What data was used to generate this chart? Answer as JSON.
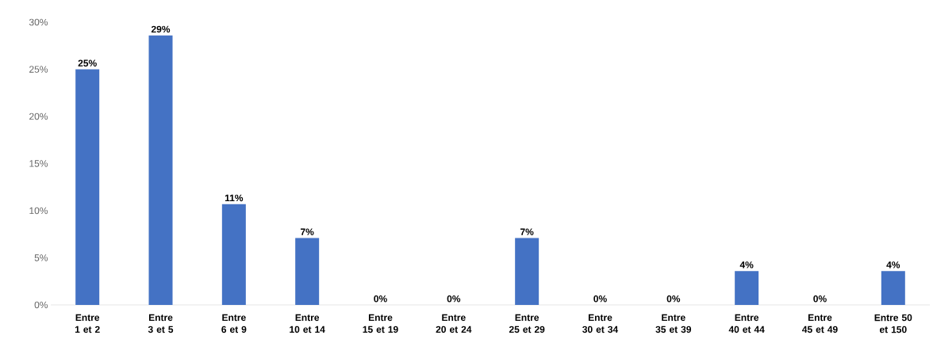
{
  "chart_data": {
    "type": "bar",
    "categories": [
      "Entre 1 et 2",
      "Entre 3 et 5",
      "Entre 6 et 9",
      "Entre 10 et 14",
      "Entre 15 et 19",
      "Entre 20 et 24",
      "Entre 25 et 29",
      "Entre 30 et 34",
      "Entre 35 et 39",
      "Entre 40 et 44",
      "Entre 45 et 49",
      "Entre 50 et 150"
    ],
    "values": [
      25,
      28.6,
      10.7,
      7.1,
      0,
      0,
      7.1,
      0,
      0,
      3.6,
      0,
      3.6
    ],
    "value_labels": [
      "25%",
      "29%",
      "11%",
      "7%",
      "0%",
      "0%",
      "7%",
      "0%",
      "0%",
      "4%",
      "0%",
      "4%"
    ],
    "color": "#4472c4",
    "ylim": [
      0,
      30
    ],
    "yticks": [
      {
        "value": 0,
        "label": "0%"
      },
      {
        "value": 5,
        "label": "5%"
      },
      {
        "value": 10,
        "label": "10%"
      },
      {
        "value": 15,
        "label": "15%"
      },
      {
        "value": 20,
        "label": "20%"
      },
      {
        "value": 25,
        "label": "25%"
      },
      {
        "value": 30,
        "label": "30%"
      }
    ],
    "grid": false
  }
}
